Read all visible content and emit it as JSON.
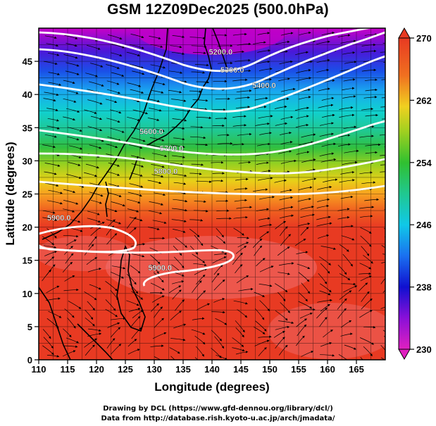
{
  "title": "GSM 12Z09Dec2025 (500.0hPa)",
  "x_axis": {
    "label": "Longitude (degrees)",
    "min": 110,
    "max": 170,
    "ticks": [
      "110",
      "115",
      "120",
      "125",
      "130",
      "135",
      "140",
      "145",
      "150",
      "155",
      "160",
      "165"
    ]
  },
  "y_axis": {
    "label": "Latitude (degrees)",
    "min": 0,
    "max": 50,
    "ticks": [
      "0",
      "5",
      "10",
      "15",
      "20",
      "25",
      "30",
      "35",
      "40",
      "45"
    ]
  },
  "colorbar": {
    "min": 230,
    "max": 270,
    "ticks": [
      "230",
      "238",
      "246",
      "254",
      "262",
      "270"
    ]
  },
  "contours": [
    {
      "label": "5200.0",
      "label_lon": 141.5,
      "label_lat": 46.0
    },
    {
      "label": "5300.0",
      "label_lon": 143.5,
      "label_lat": 43.3
    },
    {
      "label": "5400.0",
      "label_lon": 149.0,
      "label_lat": 41.0
    },
    {
      "label": "5600.0",
      "label_lon": 129.5,
      "label_lat": 34.0
    },
    {
      "label": "5700.0",
      "label_lon": 133.0,
      "label_lat": 31.5
    },
    {
      "label": "5800.0",
      "label_lon": 132.0,
      "label_lat": 28.0
    },
    {
      "label": "5900.0",
      "label_lon": 113.5,
      "label_lat": 21.0
    },
    {
      "label": "5900.0",
      "label_lon": 131.0,
      "label_lat": 13.5
    }
  ],
  "credits": {
    "line1": "Drawing by DCL (https://www.gfd-dennou.org/library/dcl/)",
    "line2": "Data from http://database.rish.kyoto-u.ac.jp/arch/jmadata/"
  }
}
